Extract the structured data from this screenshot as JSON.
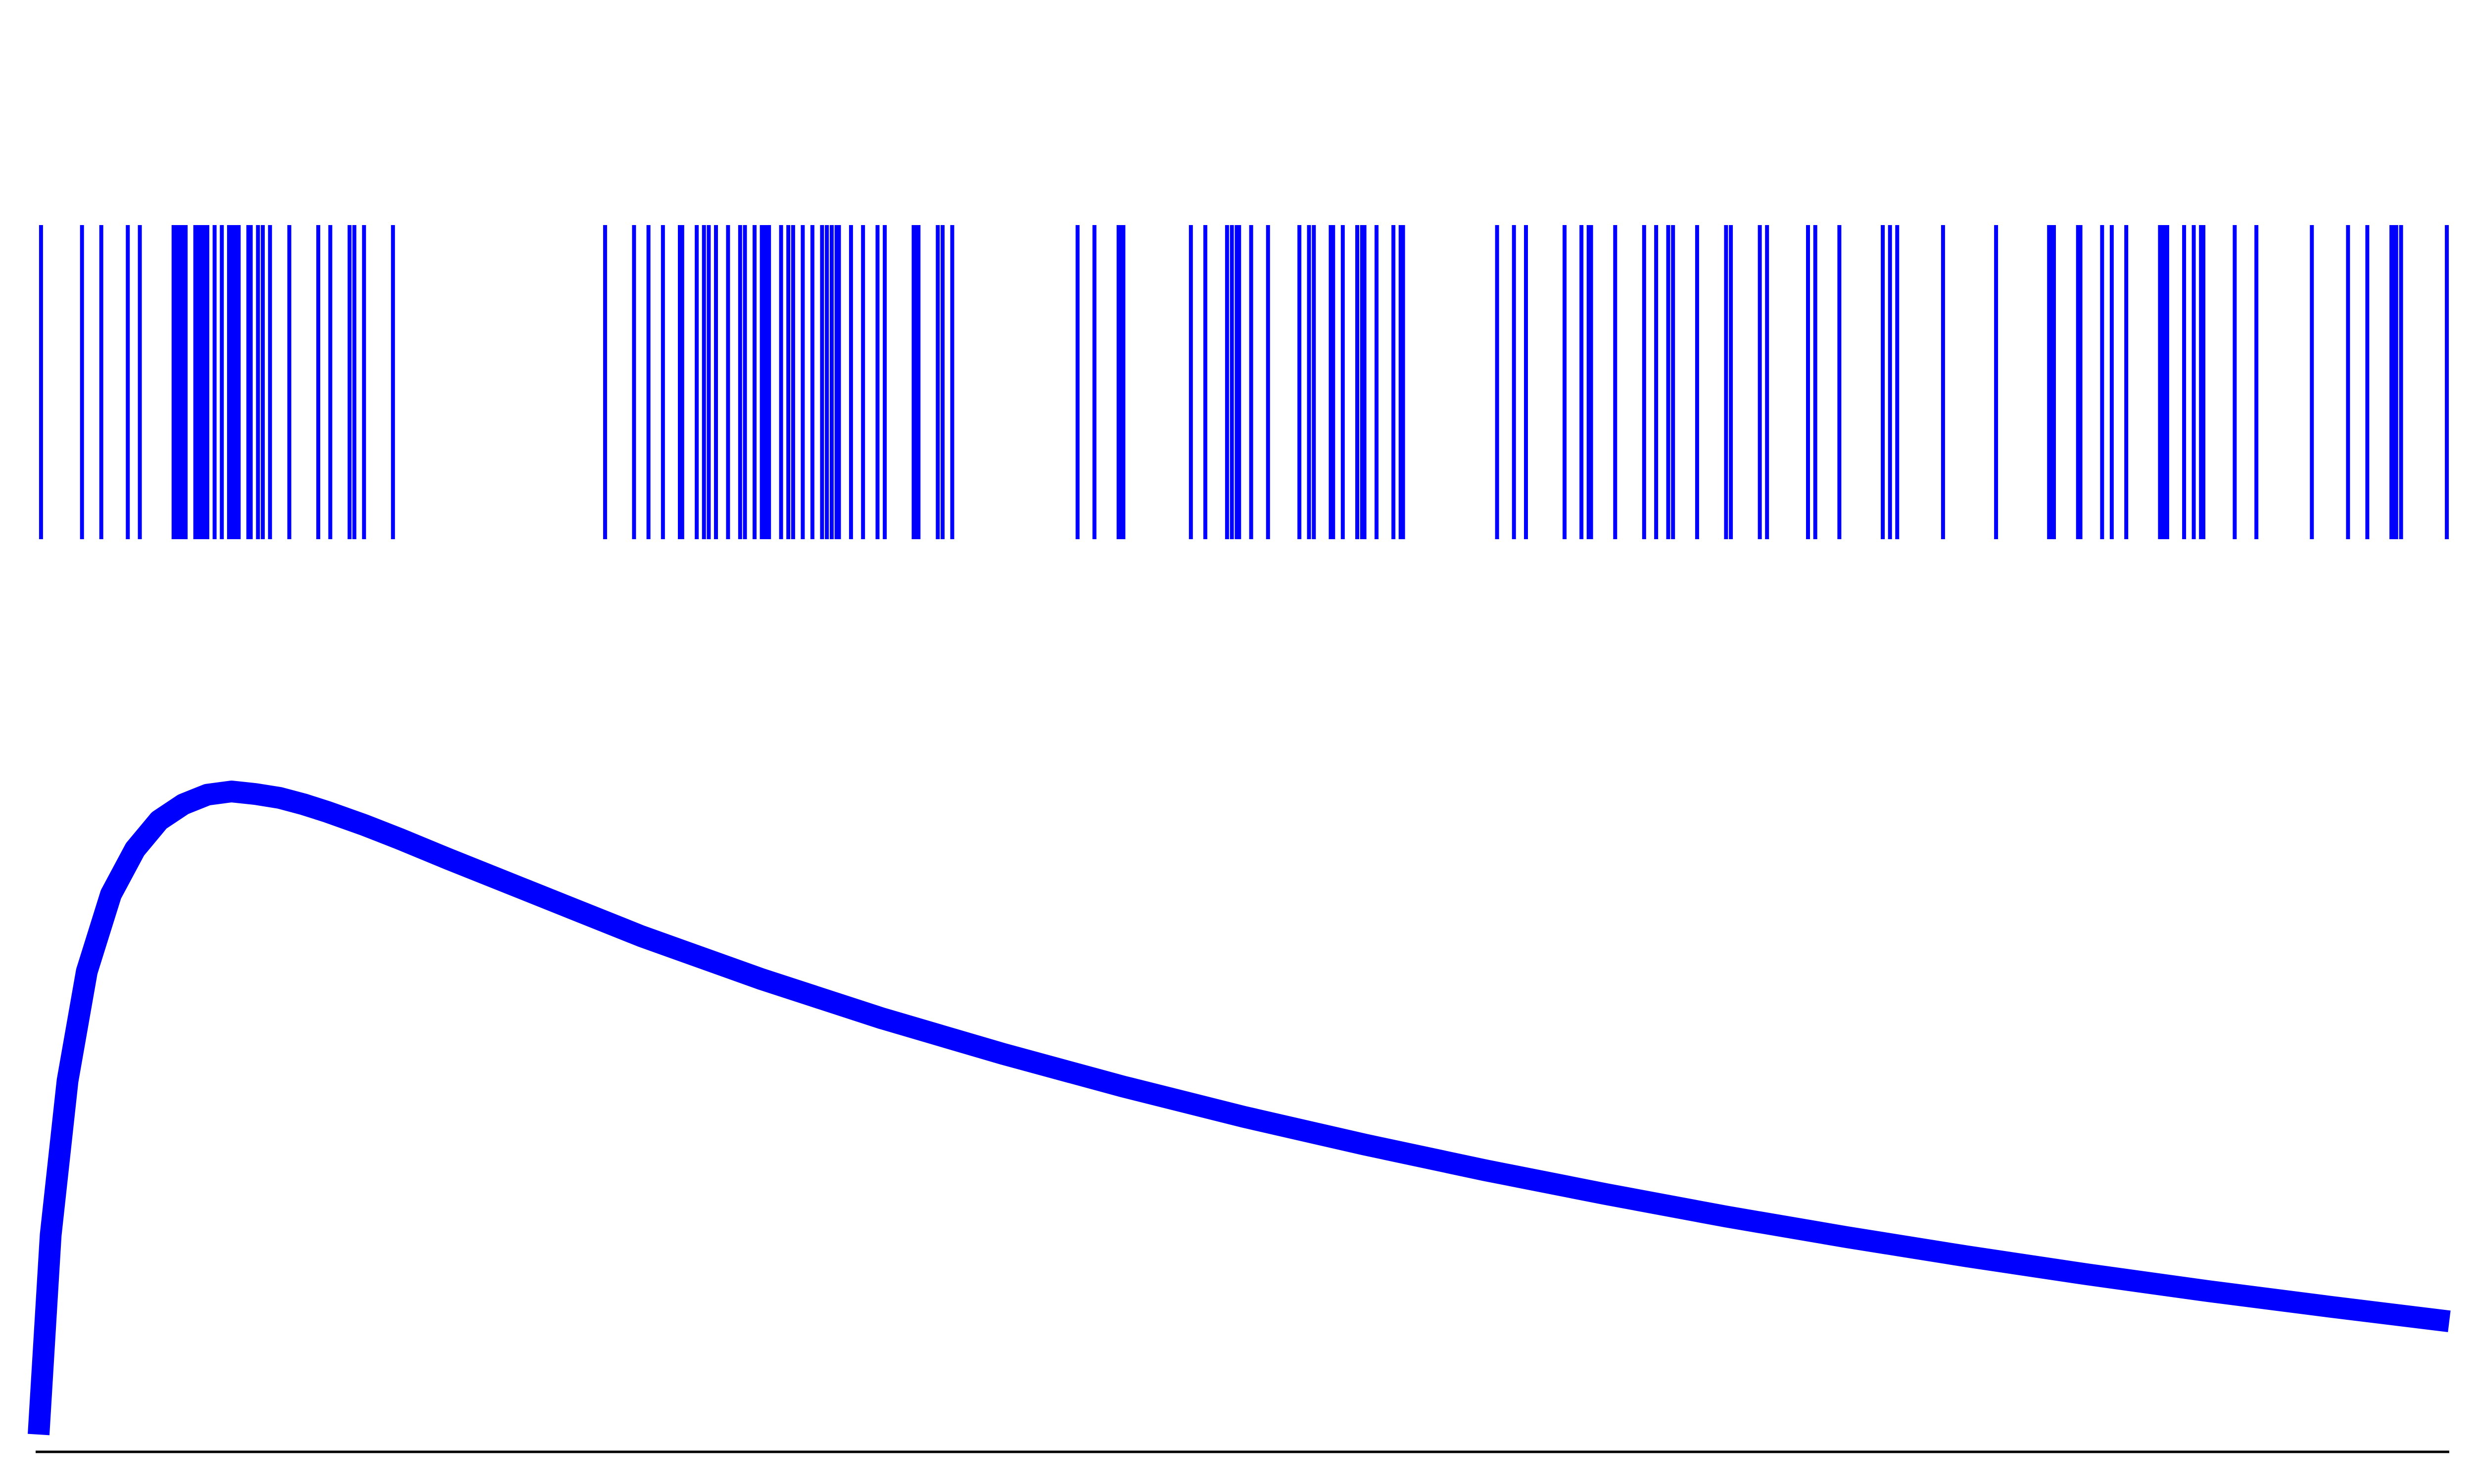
{
  "chart_data": [
    {
      "type": "rug",
      "color": "#0000ff",
      "xlim": [
        0,
        1
      ],
      "grid": false,
      "positions": [
        0.001,
        0.018,
        0.026,
        0.037,
        0.042,
        0.056,
        0.057,
        0.058,
        0.059,
        0.06,
        0.061,
        0.065,
        0.066,
        0.067,
        0.068,
        0.069,
        0.07,
        0.073,
        0.076,
        0.079,
        0.08,
        0.081,
        0.082,
        0.083,
        0.087,
        0.088,
        0.091,
        0.093,
        0.096,
        0.104,
        0.116,
        0.121,
        0.129,
        0.131,
        0.135,
        0.147,
        0.235,
        0.247,
        0.253,
        0.259,
        0.266,
        0.267,
        0.273,
        0.276,
        0.278,
        0.281,
        0.286,
        0.291,
        0.293,
        0.297,
        0.3,
        0.301,
        0.302,
        0.303,
        0.308,
        0.311,
        0.313,
        0.317,
        0.321,
        0.325,
        0.327,
        0.329,
        0.331,
        0.332,
        0.337,
        0.342,
        0.348,
        0.351,
        0.363,
        0.364,
        0.365,
        0.373,
        0.375,
        0.379,
        0.431,
        0.438,
        0.448,
        0.449,
        0.45,
        0.478,
        0.484,
        0.493,
        0.495,
        0.497,
        0.498,
        0.503,
        0.51,
        0.523,
        0.527,
        0.529,
        0.536,
        0.537,
        0.541,
        0.547,
        0.549,
        0.55,
        0.555,
        0.562,
        0.565,
        0.566,
        0.605,
        0.612,
        0.617,
        0.633,
        0.64,
        0.643,
        0.644,
        0.654,
        0.666,
        0.671,
        0.676,
        0.678,
        0.688,
        0.7,
        0.702,
        0.714,
        0.717,
        0.734,
        0.737,
        0.747,
        0.765,
        0.768,
        0.771,
        0.79,
        0.812,
        0.834,
        0.835,
        0.836,
        0.846,
        0.847,
        0.856,
        0.86,
        0.866,
        0.88,
        0.881,
        0.882,
        0.883,
        0.89,
        0.894,
        0.897,
        0.898,
        0.911,
        0.92,
        0.943,
        0.958,
        0.966,
        0.976,
        0.977,
        0.978,
        0.98,
        0.999
      ]
    },
    {
      "type": "line",
      "color": "#0000ff",
      "xlim": [
        0,
        1
      ],
      "ylim": [
        0,
        1
      ],
      "grid": false,
      "x": [
        0.0,
        0.005,
        0.012,
        0.02,
        0.03,
        0.04,
        0.05,
        0.06,
        0.07,
        0.08,
        0.09,
        0.1,
        0.11,
        0.12,
        0.135,
        0.15,
        0.17,
        0.2,
        0.25,
        0.3,
        0.35,
        0.4,
        0.45,
        0.5,
        0.55,
        0.6,
        0.65,
        0.7,
        0.75,
        0.8,
        0.85,
        0.9,
        0.95,
        1.0
      ],
      "y": [
        0.0,
        0.31,
        0.55,
        0.72,
        0.84,
        0.91,
        0.955,
        0.98,
        0.995,
        1.0,
        0.996,
        0.99,
        0.98,
        0.968,
        0.948,
        0.926,
        0.895,
        0.85,
        0.775,
        0.708,
        0.647,
        0.592,
        0.541,
        0.494,
        0.451,
        0.411,
        0.374,
        0.339,
        0.307,
        0.277,
        0.249,
        0.223,
        0.199,
        0.176
      ]
    }
  ]
}
